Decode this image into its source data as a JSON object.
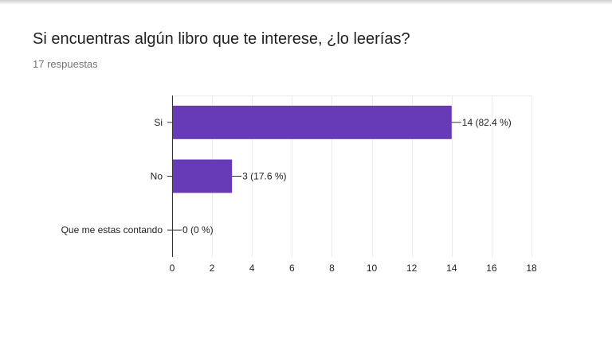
{
  "form": {
    "question": "Si encuentras algún libro que te interese, ¿lo leerías?",
    "responses": "17 respuestas"
  },
  "colors": {
    "bar": "#673ab7",
    "axis": "#333333",
    "grid": "#ebebeb",
    "text": "#222222"
  },
  "chart_data": {
    "type": "bar",
    "orientation": "horizontal",
    "categories": [
      "Si",
      "No",
      "Que me estas contando"
    ],
    "values": [
      14,
      3,
      0
    ],
    "data_labels": [
      "14 (82.4 %)",
      "3 (17.6 %)",
      "0 (0 %)"
    ],
    "xlim": [
      0,
      18
    ],
    "x_ticks": [
      0,
      2,
      4,
      6,
      8,
      10,
      12,
      14,
      16,
      18
    ],
    "grid": true,
    "legend": "none"
  }
}
